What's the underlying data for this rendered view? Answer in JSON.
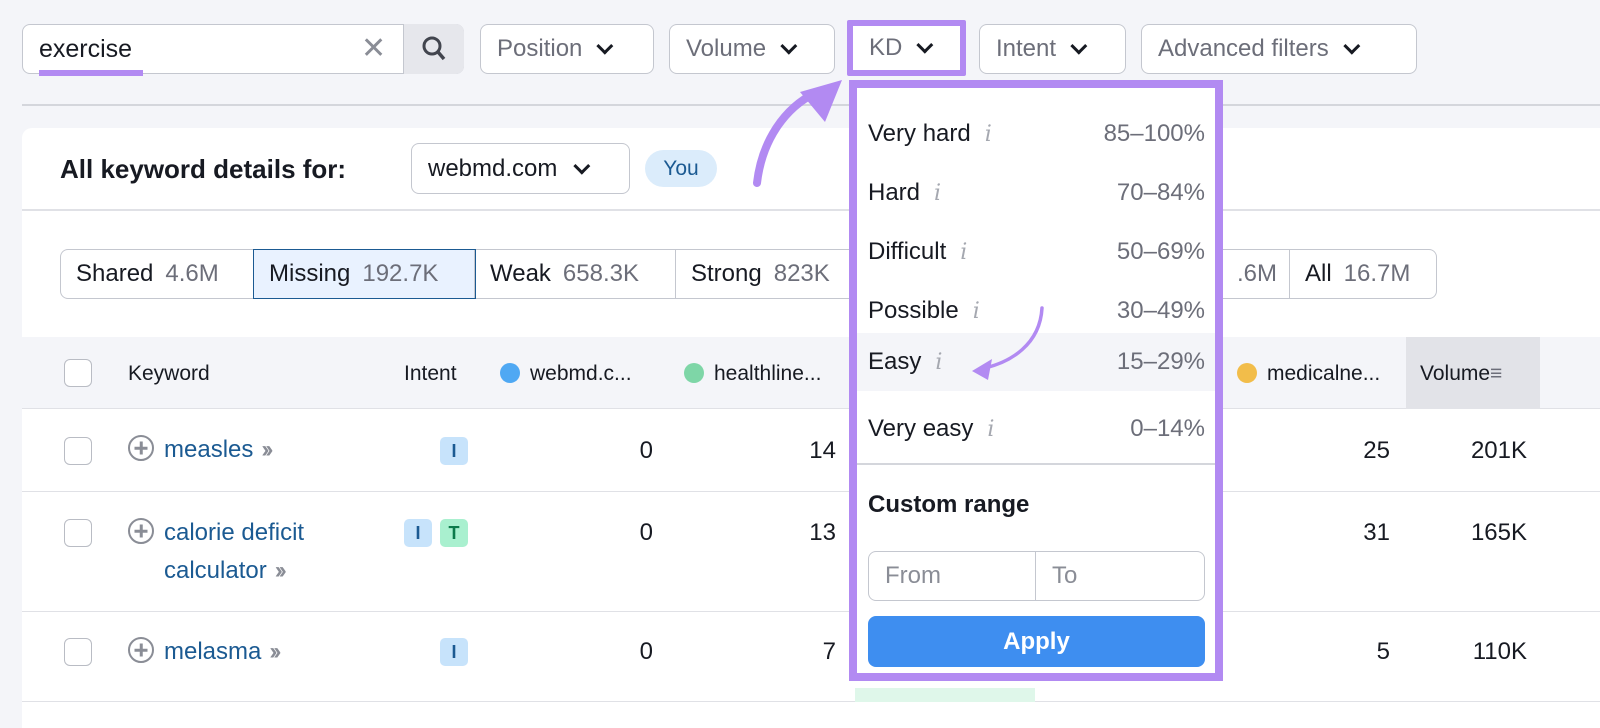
{
  "search": {
    "value": "exercise"
  },
  "filters": [
    {
      "label": "Position"
    },
    {
      "label": "Volume"
    },
    {
      "label": "KD"
    },
    {
      "label": "Intent"
    },
    {
      "label": "Advanced filters"
    }
  ],
  "header": {
    "title": "All keyword details for:",
    "domain": "webmd.com",
    "you_badge": "You"
  },
  "tabs": [
    {
      "label": "Shared",
      "count": "4.6M"
    },
    {
      "label": "Missing",
      "count": "192.7K"
    },
    {
      "label": "Weak",
      "count": "658.3K"
    },
    {
      "label": "Strong",
      "count": "823K"
    },
    {
      "label": "",
      "count": ".6M"
    },
    {
      "label": "All",
      "count": "16.7M"
    }
  ],
  "columns": {
    "keyword": "Keyword",
    "intent": "Intent",
    "c1": "webmd.c...",
    "c2": "healthline...",
    "c3": "medicalne...",
    "volume": "Volume"
  },
  "colors": {
    "accent": "#b28af2",
    "webmd": "#4fa8f3",
    "healthline": "#7ed6a7",
    "medicalnews": "#f2bd4a",
    "apply": "#3e8ef0"
  },
  "rows": [
    {
      "keyword": "measles",
      "intent": [
        "I"
      ],
      "c1": "0",
      "c2": "14",
      "c3": "25",
      "volume": "201K"
    },
    {
      "keyword": "calorie deficit calculator",
      "kw1": "calorie deficit",
      "kw2": "calculator",
      "intent": [
        "I",
        "T"
      ],
      "c1": "0",
      "c2": "13",
      "c3": "31",
      "volume": "165K"
    },
    {
      "keyword": "melasma",
      "intent": [
        "I"
      ],
      "c1": "0",
      "c2": "7",
      "c3": "5",
      "volume": "110K"
    }
  ],
  "kd_dropdown": {
    "items": [
      {
        "label": "Very hard",
        "range": "85–100%"
      },
      {
        "label": "Hard",
        "range": "70–84%"
      },
      {
        "label": "Difficult",
        "range": "50–69%"
      },
      {
        "label": "Possible",
        "range": "30–49%"
      },
      {
        "label": "Easy",
        "range": "15–29%"
      },
      {
        "label": "Very easy",
        "range": "0–14%"
      }
    ],
    "custom_range": "Custom range",
    "from_placeholder": "From",
    "to_placeholder": "To",
    "apply": "Apply"
  }
}
